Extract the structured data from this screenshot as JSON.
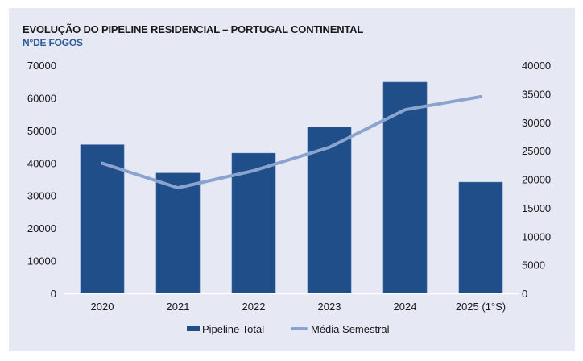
{
  "chart_data": {
    "type": "bar",
    "title": "EVOLUÇÃO DO PIPELINE RESIDENCIAL – PORTUGAL CONTINENTAL",
    "subtitle": "N°DE FOGOS",
    "categories": [
      "2020",
      "2021",
      "2022",
      "2023",
      "2024",
      "2025 (1°S)"
    ],
    "series": [
      {
        "name": "Pipeline Total",
        "type": "bar",
        "axis": "left",
        "color": "#1f4e89",
        "values": [
          45600,
          36900,
          43000,
          51000,
          64800,
          34100
        ]
      },
      {
        "name": "Média Semestral",
        "type": "line",
        "axis": "right",
        "color": "#8aa3cf",
        "values": [
          22800,
          18500,
          21500,
          25600,
          32200,
          34500
        ]
      }
    ],
    "y_left": {
      "min": 0,
      "max": 70000,
      "ticks": [
        "0",
        "10000",
        "20000",
        "30000",
        "40000",
        "50000",
        "60000",
        "70000"
      ]
    },
    "y_right": {
      "min": 0,
      "max": 40000,
      "ticks": [
        "0",
        "5000",
        "10000",
        "15000",
        "20000",
        "25000",
        "30000",
        "35000",
        "40000"
      ]
    },
    "xlabel": "",
    "ylabel": "",
    "grid": false,
    "legend": "bottom-center",
    "background": "#e6e9f4"
  }
}
